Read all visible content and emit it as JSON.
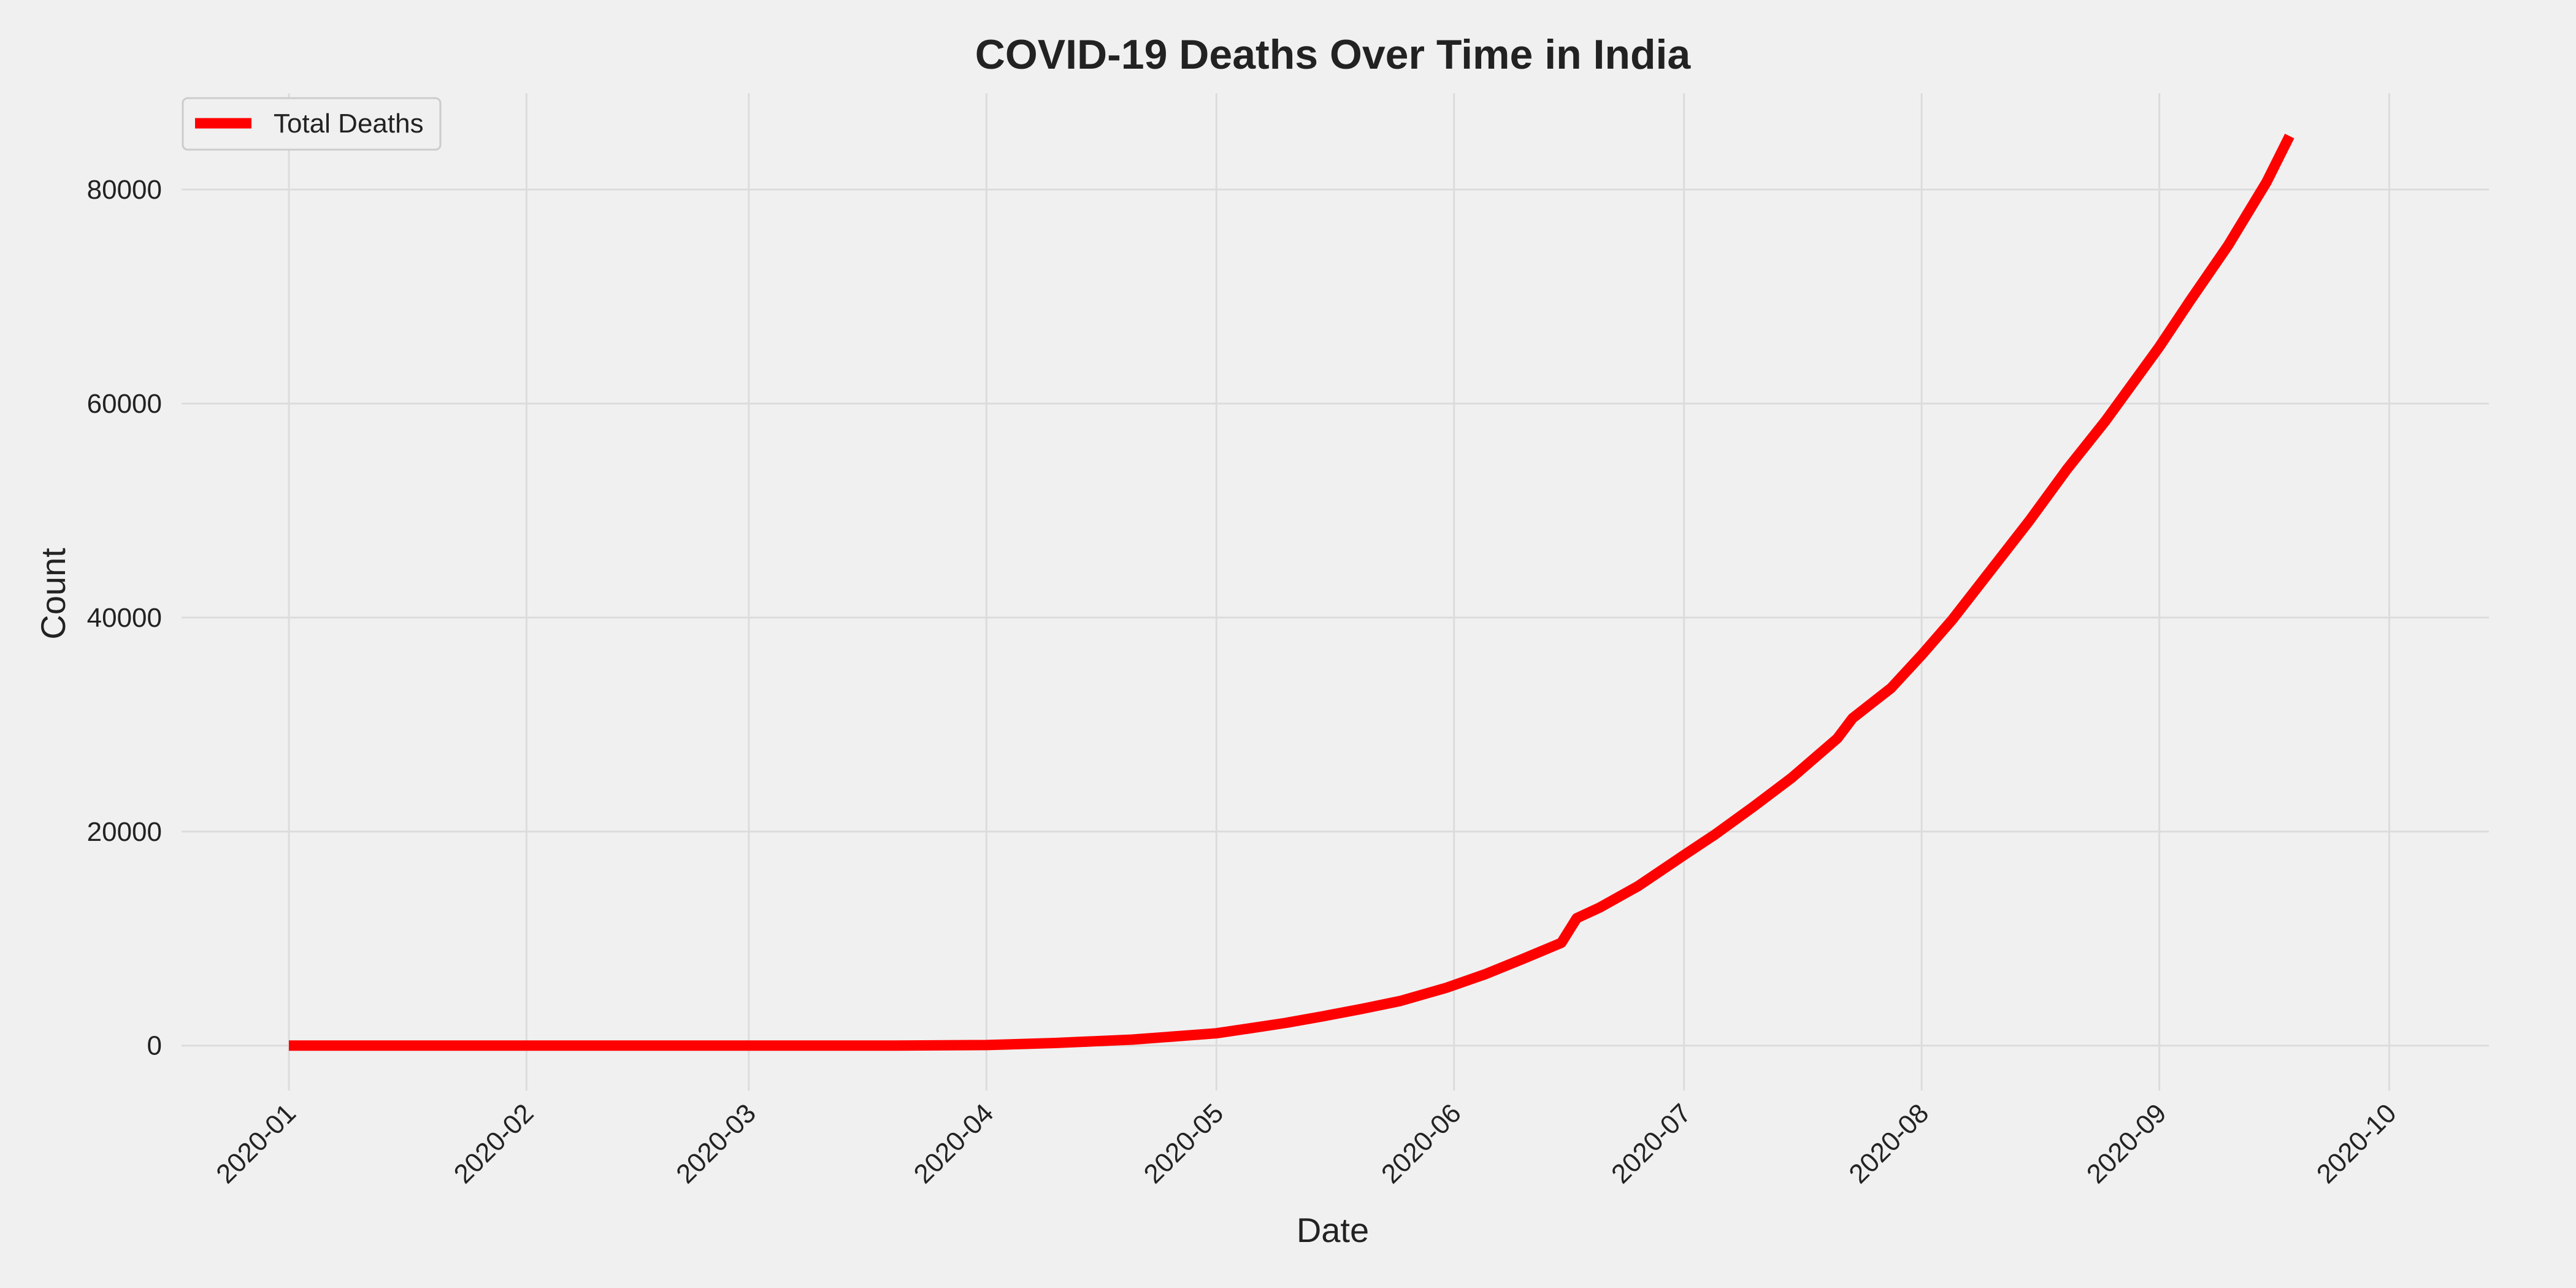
{
  "chart_data": {
    "type": "line",
    "title": "COVID-19 Deaths Over Time in India",
    "xlabel": "Date",
    "ylabel": "Count",
    "x_ticks": [
      "2020-01",
      "2020-02",
      "2020-03",
      "2020-04",
      "2020-05",
      "2020-06",
      "2020-07",
      "2020-08",
      "2020-09",
      "2020-10"
    ],
    "y_ticks": [
      "0",
      "20000",
      "40000",
      "60000",
      "80000"
    ],
    "xlim": [
      "2019-12-18",
      "2020-10-14"
    ],
    "ylim": [
      -4200,
      89000
    ],
    "grid": true,
    "legend": {
      "position": "top-left"
    },
    "series": [
      {
        "name": "Total Deaths",
        "color": "#ff0000",
        "points": [
          [
            "2020-01-01",
            0
          ],
          [
            "2020-02-01",
            0
          ],
          [
            "2020-03-01",
            0
          ],
          [
            "2020-03-20",
            4
          ],
          [
            "2020-04-01",
            50
          ],
          [
            "2020-04-10",
            240
          ],
          [
            "2020-04-20",
            560
          ],
          [
            "2020-05-01",
            1150
          ],
          [
            "2020-05-05",
            1570
          ],
          [
            "2020-05-10",
            2110
          ],
          [
            "2020-05-15",
            2750
          ],
          [
            "2020-05-20",
            3430
          ],
          [
            "2020-05-25",
            4170
          ],
          [
            "2020-05-31",
            5400
          ],
          [
            "2020-06-05",
            6650
          ],
          [
            "2020-06-10",
            8100
          ],
          [
            "2020-06-15",
            9600
          ],
          [
            "2020-06-17",
            11900
          ],
          [
            "2020-06-20",
            12900
          ],
          [
            "2020-06-25",
            14900
          ],
          [
            "2020-07-01",
            17800
          ],
          [
            "2020-07-05",
            19700
          ],
          [
            "2020-07-10",
            22300
          ],
          [
            "2020-07-15",
            25000
          ],
          [
            "2020-07-21",
            28700
          ],
          [
            "2020-07-23",
            30600
          ],
          [
            "2020-07-28",
            33400
          ],
          [
            "2020-08-01",
            36500
          ],
          [
            "2020-08-05",
            39800
          ],
          [
            "2020-08-10",
            44400
          ],
          [
            "2020-08-15",
            49000
          ],
          [
            "2020-08-20",
            53900
          ],
          [
            "2020-08-25",
            58400
          ],
          [
            "2020-09-01",
            65300
          ],
          [
            "2020-09-05",
            69600
          ],
          [
            "2020-09-10",
            74800
          ],
          [
            "2020-09-15",
            80700
          ],
          [
            "2020-09-18",
            85000
          ]
        ]
      }
    ]
  }
}
